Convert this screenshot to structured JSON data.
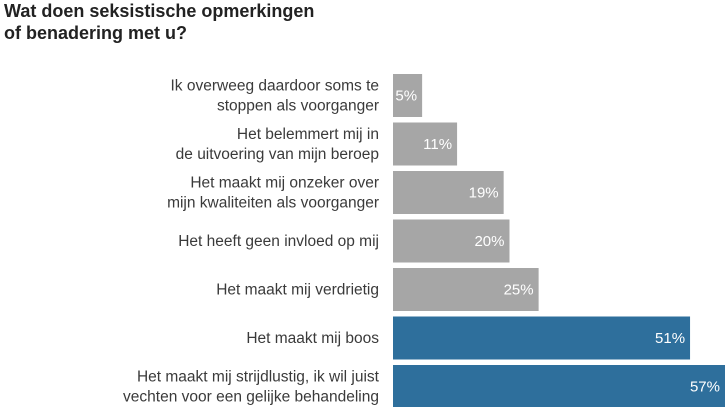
{
  "chart_data": {
    "type": "bar",
    "orientation": "horizontal",
    "title": "Wat doen seksistische opmerkingen\nof benadering met u?",
    "categories": [
      [
        "Ik overweeg daardoor soms te",
        "stoppen als voorganger"
      ],
      [
        "Het belemmert mij in",
        "de uitvoering van mijn beroep"
      ],
      [
        "Het maakt mij onzeker over",
        "mijn kwaliteiten als voorganger"
      ],
      [
        "Het heeft geen invloed op mij"
      ],
      [
        "Het maakt mij verdrietig"
      ],
      [
        "Het maakt mij boos"
      ],
      [
        "Het maakt mij strijdlustig, ik wil juist",
        "vechten voor een gelijke behandeling"
      ]
    ],
    "values": [
      5,
      11,
      19,
      20,
      25,
      51,
      57
    ],
    "value_labels": [
      "5%",
      "11%",
      "19%",
      "20%",
      "25%",
      "51%",
      "57%"
    ],
    "unit": "%",
    "bar_colors": [
      "#a6a6a6",
      "#a6a6a6",
      "#a6a6a6",
      "#a6a6a6",
      "#a6a6a6",
      "#2e6f9c",
      "#2e6f9c"
    ],
    "xlim": [
      0,
      57
    ],
    "grid": false,
    "legend": "none"
  }
}
